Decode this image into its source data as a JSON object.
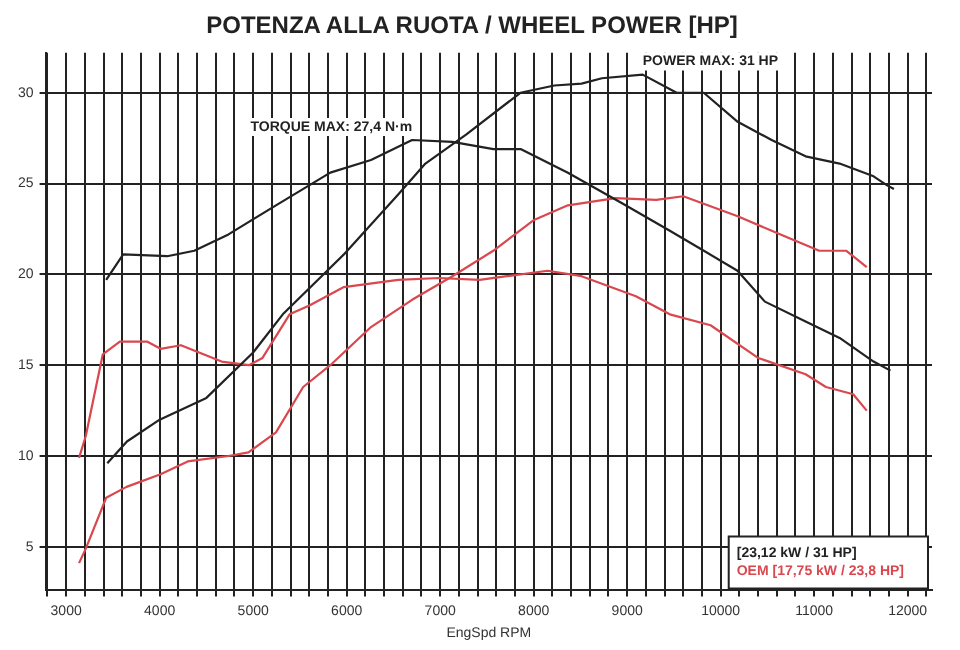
{
  "chart_data": {
    "type": "line",
    "title": "POTENZA ALLA RUOTA / WHEEL POWER [HP]",
    "xlabel": "EngSpd RPM",
    "xlim": [
      2780,
      12260
    ],
    "ylim": [
      2.6,
      32.2
    ],
    "xticks": [
      {
        "value": 2800,
        "label": null
      },
      3000,
      {
        "value": 3200,
        "label": null
      },
      {
        "value": 3400,
        "label": null
      },
      {
        "value": 3600,
        "label": null
      },
      {
        "value": 3800,
        "label": null
      },
      4000,
      {
        "value": 4200,
        "label": null
      },
      {
        "value": 4400,
        "label": null
      },
      {
        "value": 4600,
        "label": null
      },
      {
        "value": 4800,
        "label": null
      },
      5000,
      {
        "value": 5200,
        "label": null
      },
      {
        "value": 5400,
        "label": null
      },
      {
        "value": 5600,
        "label": null
      },
      {
        "value": 5800,
        "label": null
      },
      6000,
      {
        "value": 6200,
        "label": null
      },
      {
        "value": 6400,
        "label": null
      },
      {
        "value": 6600,
        "label": null
      },
      {
        "value": 6800,
        "label": null
      },
      7000,
      {
        "value": 7200,
        "label": null
      },
      {
        "value": 7400,
        "label": null
      },
      {
        "value": 7600,
        "label": null
      },
      {
        "value": 7800,
        "label": null
      },
      8000,
      {
        "value": 8200,
        "label": null
      },
      {
        "value": 8400,
        "label": null
      },
      {
        "value": 8600,
        "label": null
      },
      {
        "value": 8800,
        "label": null
      },
      9000,
      {
        "value": 9200,
        "label": null
      },
      {
        "value": 9400,
        "label": null
      },
      {
        "value": 9600,
        "label": null
      },
      {
        "value": 9800,
        "label": null
      },
      10000,
      {
        "value": 10200,
        "label": null
      },
      {
        "value": 10400,
        "label": null
      },
      {
        "value": 10600,
        "label": null
      },
      {
        "value": 10800,
        "label": null
      },
      11000,
      {
        "value": 11200,
        "label": null
      },
      {
        "value": 11400,
        "label": null
      },
      {
        "value": 11600,
        "label": null
      },
      {
        "value": 11800,
        "label": null
      },
      12000,
      {
        "value": 12200,
        "label": null
      }
    ],
    "yticks": [
      5,
      10,
      15,
      20,
      25,
      30
    ],
    "grid": true,
    "legend": "bottom right",
    "marker": "none",
    "line_style": "solid",
    "series": [
      {
        "name": "[23,12 kW / 31 HP]",
        "color": "#222222",
        "x": [
          3440,
          3650,
          4000,
          4500,
          5000,
          5317,
          5970,
          6551,
          6842,
          7277,
          7858,
          8221,
          8512,
          8730,
          9166,
          9529,
          9819,
          10182,
          10545,
          10908,
          11272,
          11635,
          11780,
          11853
        ],
        "values": [
          9.6,
          10.8,
          12.0,
          13.2,
          15.7,
          17.8,
          21.1,
          24.4,
          26.1,
          27.7,
          30.0,
          30.4,
          30.5,
          30.8,
          31.0,
          30.0,
          30.0,
          28.4,
          27.4,
          26.5,
          26.1,
          25.4,
          24.9,
          24.7
        ]
      },
      {
        "color": "#222222",
        "x": [
          3428,
          3610,
          4080,
          4370,
          4736,
          5244,
          5825,
          6260,
          6700,
          7130,
          7570,
          7860,
          8366,
          8950,
          9456,
          9820,
          10180,
          10473,
          10908,
          11272,
          11635,
          11816
        ],
        "values": [
          19.7,
          21.1,
          21.0,
          21.3,
          22.2,
          23.8,
          25.6,
          26.3,
          27.4,
          27.3,
          26.9,
          26.9,
          25.6,
          23.9,
          22.4,
          21.3,
          20.2,
          18.5,
          17.4,
          16.5,
          15.2,
          14.7
        ]
      },
      {
        "name": "OEM [17,75 kW / 23,8 HP]",
        "color": "#d9474f",
        "x": [
          3138,
          3210,
          3428,
          3646,
          4010,
          4300,
          4736,
          4950,
          5244,
          5535,
          5825,
          6260,
          6700,
          7131,
          7568,
          8004,
          8366,
          8875,
          9311,
          9600,
          10182,
          10545,
          11054,
          11344,
          11562
        ],
        "values": [
          4.1,
          4.9,
          7.7,
          8.3,
          9.0,
          9.7,
          10.0,
          10.2,
          11.3,
          13.8,
          15.0,
          17.1,
          18.6,
          19.9,
          21.3,
          23.0,
          23.8,
          24.2,
          24.1,
          24.3,
          23.2,
          22.4,
          21.3,
          21.3,
          20.4
        ]
      },
      {
        "color": "#d9474f",
        "x": [
          3138,
          3210,
          3392,
          3574,
          3864,
          4010,
          4227,
          4663,
          4954,
          5100,
          5390,
          5607,
          5970,
          6551,
          6987,
          7422,
          7713,
          8149,
          8512,
          9093,
          9456,
          9892,
          10400,
          10908,
          11126,
          11417,
          11562
        ],
        "values": [
          9.9,
          11.1,
          15.6,
          16.3,
          16.3,
          15.9,
          16.1,
          15.2,
          15.0,
          15.4,
          17.8,
          18.3,
          19.3,
          19.7,
          19.8,
          19.7,
          19.9,
          20.2,
          19.9,
          18.8,
          17.8,
          17.2,
          15.4,
          14.5,
          13.8,
          13.4,
          12.5
        ]
      }
    ],
    "annotations": [
      {
        "text": "POWER MAX: 31 HP",
        "x": 9166,
        "y": 31
      },
      {
        "text": "TORQUE MAX: 27,4 N·m",
        "x": 6700,
        "y": 27.4
      }
    ]
  }
}
